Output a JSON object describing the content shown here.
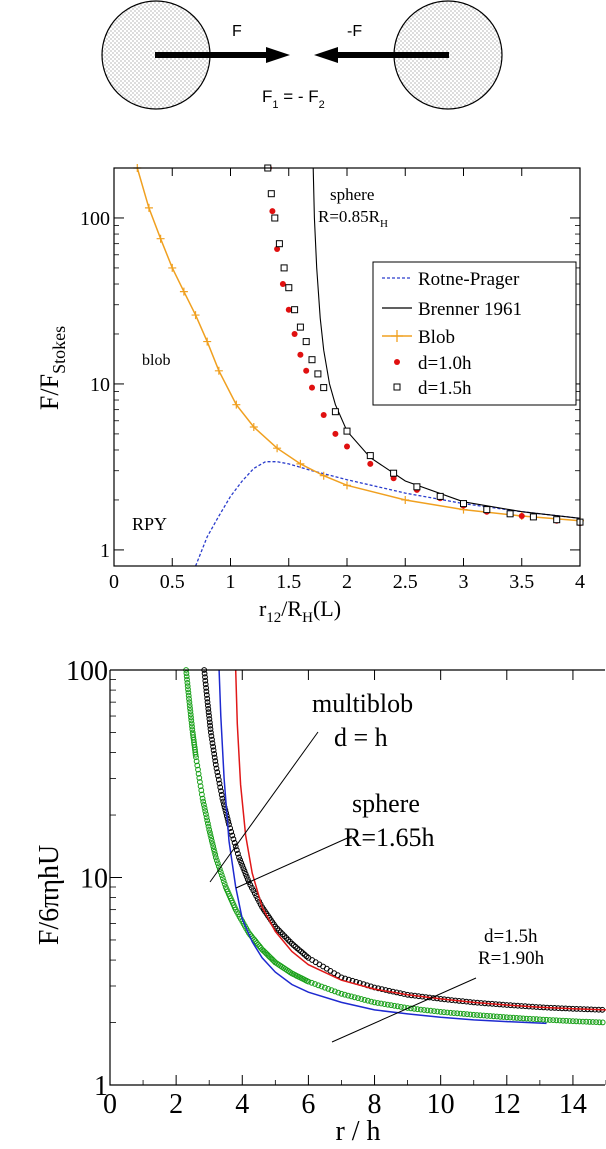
{
  "diagram": {
    "force_right": "F",
    "force_left": "-F",
    "relation": {
      "F": "F",
      "sub1": "1",
      "eq": " = - F",
      "sub2": "2"
    }
  },
  "chart_data": [
    {
      "type": "line",
      "title": "",
      "xlabel": {
        "main": "r",
        "sub": "12",
        "rest": "/R",
        "sub2": "H",
        "tail": "(L)"
      },
      "ylabel": {
        "main": "F/F",
        "sub": "Stokes"
      },
      "xlim": [
        0,
        4
      ],
      "ylim": [
        0.8,
        200
      ],
      "yscale": "log",
      "xticks": [
        "0",
        "0.5",
        "1",
        "1.5",
        "2",
        "2.5",
        "3",
        "3.5",
        "4"
      ],
      "yticks": [
        "1",
        "10",
        "100"
      ],
      "legend_position": "right",
      "legend": [
        "Rotne-Prager",
        "Brenner 1961",
        "Blob",
        "d=1.0h",
        "d=1.5h"
      ],
      "annotations": [
        "blob",
        "RPY",
        "sphere",
        "R=0.85R"
      ],
      "annotation_sub": "H",
      "colors": {
        "rpy": "#2a3ccc",
        "brenner": "#000000",
        "blob": "#f0a020",
        "d10": "#e01010",
        "d15": "#000000"
      },
      "series": [
        {
          "name": "Rotne-Prager",
          "x": [
            0.7,
            0.8,
            0.9,
            1.0,
            1.1,
            1.2,
            1.3,
            1.4,
            1.5,
            1.7,
            2.0,
            2.5,
            3.0,
            3.5,
            4.0
          ],
          "y": [
            0.8,
            1.2,
            1.6,
            2.1,
            2.6,
            3.1,
            3.4,
            3.4,
            3.3,
            3.0,
            2.65,
            2.2,
            1.9,
            1.7,
            1.55
          ]
        },
        {
          "name": "Brenner 1961",
          "x": [
            1.71,
            1.72,
            1.74,
            1.77,
            1.8,
            1.85,
            1.9,
            2.0,
            2.2,
            2.5,
            3.0,
            3.5,
            4.0
          ],
          "y": [
            200,
            100,
            50,
            25,
            16,
            10,
            7.5,
            5.2,
            3.6,
            2.6,
            1.95,
            1.7,
            1.55
          ]
        },
        {
          "name": "Blob",
          "x": [
            0.2,
            0.3,
            0.4,
            0.5,
            0.6,
            0.7,
            0.8,
            0.9,
            1.05,
            1.2,
            1.4,
            1.6,
            1.8,
            2.0,
            2.5,
            3.0,
            3.5,
            4.0
          ],
          "y": [
            200,
            115,
            75,
            50,
            36,
            26,
            18,
            12,
            7.5,
            5.5,
            4.1,
            3.3,
            2.8,
            2.45,
            2.0,
            1.75,
            1.6,
            1.5
          ]
        },
        {
          "name": "d=1.0h",
          "x": [
            1.33,
            1.36,
            1.4,
            1.45,
            1.5,
            1.55,
            1.6,
            1.65,
            1.7,
            1.8,
            1.9,
            2.0,
            2.2,
            2.4,
            2.6,
            2.8,
            3.0,
            3.2,
            3.5,
            3.8,
            4.0
          ],
          "y": [
            200,
            110,
            65,
            40,
            28,
            20,
            15,
            12,
            9.5,
            6.5,
            5.0,
            4.2,
            3.3,
            2.7,
            2.3,
            2.05,
            1.85,
            1.7,
            1.6,
            1.5,
            1.45
          ]
        },
        {
          "name": "d=1.5h",
          "x": [
            1.32,
            1.35,
            1.38,
            1.42,
            1.46,
            1.5,
            1.55,
            1.6,
            1.65,
            1.7,
            1.75,
            1.8,
            1.9,
            2.0,
            2.2,
            2.4,
            2.6,
            2.8,
            3.0,
            3.2,
            3.4,
            3.6,
            3.8,
            4.0
          ],
          "y": [
            200,
            140,
            100,
            70,
            50,
            38,
            28,
            22,
            18,
            14,
            11.5,
            9.5,
            6.8,
            5.2,
            3.7,
            2.9,
            2.4,
            2.1,
            1.9,
            1.75,
            1.65,
            1.58,
            1.52,
            1.47
          ]
        }
      ]
    },
    {
      "type": "line",
      "title": "",
      "xlabel": "r / h",
      "ylabel": "F/6πηhU",
      "xlim": [
        0,
        15
      ],
      "ylim": [
        1,
        100
      ],
      "yscale": "log",
      "xticks": [
        "0",
        "2",
        "4",
        "6",
        "8",
        "10",
        "12",
        "14"
      ],
      "yticks": [
        "1",
        "10",
        "100"
      ],
      "annotations": [
        "multiblob",
        "d = h",
        "sphere",
        "R=1.65h",
        "d=1.5h",
        "R=1.90h"
      ],
      "colors": {
        "blue": "#1e2ad0",
        "red": "#e01818",
        "green": "#18a018",
        "black": "#000000"
      },
      "series": [
        {
          "x": [
            3.3,
            3.35,
            3.45,
            3.6,
            3.8,
            4.0,
            4.3,
            4.6,
            5.0,
            5.5,
            6.0,
            7.0,
            8.0,
            9.0,
            10.0,
            11.0,
            12.0,
            13.2
          ],
          "y": [
            100,
            60,
            30,
            15,
            9,
            6.3,
            4.9,
            4.1,
            3.5,
            3.05,
            2.8,
            2.5,
            2.3,
            2.2,
            2.12,
            2.06,
            2.02,
            1.98
          ]
        },
        {
          "x": [
            3.8,
            3.85,
            3.95,
            4.1,
            4.3,
            4.6,
            5.0,
            5.5,
            6.0,
            7.0,
            8.0,
            9.0,
            10.0,
            11.0,
            12.0,
            13.0,
            14.0,
            15.0
          ],
          "y": [
            100,
            55,
            28,
            16,
            10.5,
            7.2,
            5.5,
            4.4,
            3.8,
            3.2,
            2.9,
            2.72,
            2.6,
            2.5,
            2.43,
            2.37,
            2.33,
            2.3
          ]
        },
        {
          "x": [
            2.3,
            2.4,
            2.5,
            2.6,
            2.8,
            3.0,
            3.2,
            3.5,
            3.8,
            4.2,
            4.6,
            5.0,
            5.5,
            6.0,
            7.0,
            8.0,
            9.0,
            10.0,
            11.0,
            12.0,
            13.0,
            14.0,
            15.0
          ],
          "y": [
            100,
            70,
            50,
            38,
            24,
            17,
            12.5,
            9,
            7,
            5.4,
            4.5,
            3.9,
            3.45,
            3.15,
            2.75,
            2.5,
            2.35,
            2.25,
            2.18,
            2.12,
            2.07,
            2.03,
            2.0
          ]
        },
        {
          "x": [
            2.85,
            2.95,
            3.05,
            3.2,
            3.4,
            3.6,
            3.9,
            4.2,
            4.6,
            5.0,
            5.5,
            6.0,
            7.0,
            8.0,
            9.0,
            10.0,
            11.0,
            12.0,
            13.0,
            14.0,
            15.0
          ],
          "y": [
            100,
            70,
            50,
            35,
            24,
            18,
            12.5,
            9.5,
            7.2,
            5.8,
            4.8,
            4.1,
            3.3,
            2.95,
            2.72,
            2.6,
            2.5,
            2.43,
            2.37,
            2.33,
            2.3
          ]
        }
      ]
    }
  ]
}
